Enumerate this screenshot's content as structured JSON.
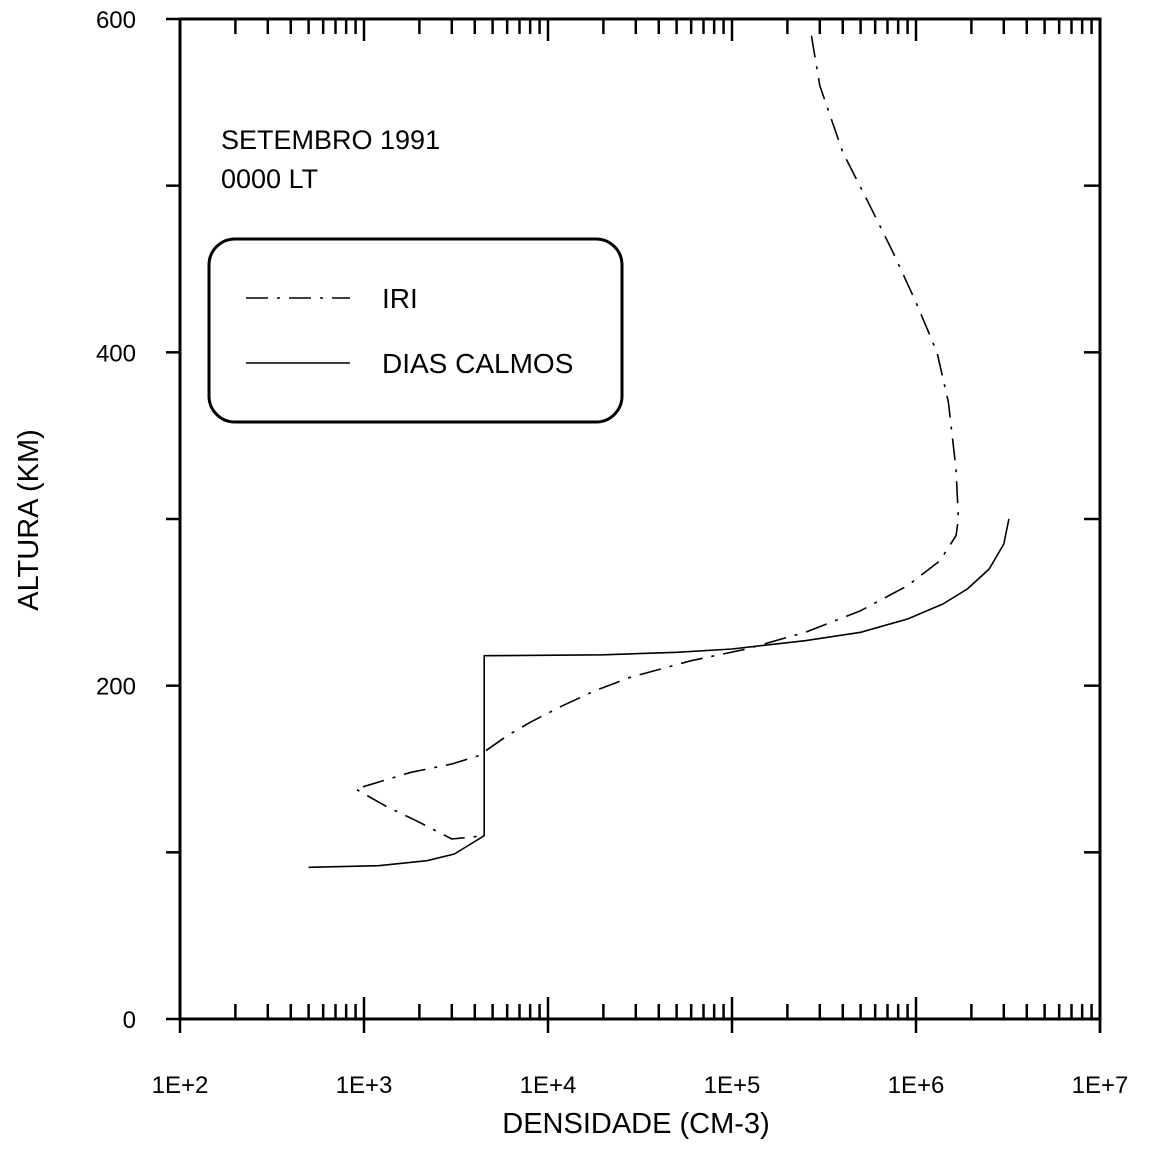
{
  "chart_data": {
    "type": "line",
    "title": "",
    "annotation": [
      "SETEMBRO 1991",
      "0000 LT"
    ],
    "xlabel": "DENSIDADE (CM-3)",
    "ylabel": "ALTURA (KM)",
    "xscale": "log",
    "xlim": [
      100,
      10000000
    ],
    "ylim": [
      0,
      600
    ],
    "x_tick_labels": [
      "1E+2",
      "1E+3",
      "1E+4",
      "1E+5",
      "1E+6",
      "1E+7"
    ],
    "y_tick_labels": [
      "0",
      "200",
      "400",
      "600"
    ],
    "grid": false,
    "legend_position": "upper-left",
    "series": [
      {
        "name": "IRI",
        "style": "dash-dot",
        "color": "#000000",
        "points": [
          [
            270000,
            590
          ],
          [
            300000,
            560
          ],
          [
            400000,
            520
          ],
          [
            550000,
            490
          ],
          [
            750000,
            460
          ],
          [
            1000000,
            430
          ],
          [
            1300000,
            400
          ],
          [
            1500000,
            370
          ],
          [
            1650000,
            330
          ],
          [
            1700000,
            300
          ],
          [
            1650000,
            290
          ],
          [
            1350000,
            275
          ],
          [
            900000,
            260
          ],
          [
            500000,
            245
          ],
          [
            250000,
            232
          ],
          [
            120000,
            222
          ],
          [
            60000,
            215
          ],
          [
            28000,
            205
          ],
          [
            18000,
            197
          ],
          [
            12000,
            188
          ],
          [
            8000,
            178
          ],
          [
            6000,
            170
          ],
          [
            4200,
            158
          ],
          [
            3000,
            153
          ],
          [
            1800,
            148
          ],
          [
            900,
            138
          ],
          [
            1300,
            128
          ],
          [
            2000,
            118
          ],
          [
            3000,
            108
          ],
          [
            4500,
            110
          ]
        ]
      },
      {
        "name": "DIAS CALMOS",
        "style": "solid",
        "color": "#000000",
        "points": [
          [
            3200000,
            300
          ],
          [
            3000000,
            285
          ],
          [
            2500000,
            270
          ],
          [
            1900000,
            258
          ],
          [
            1400000,
            249
          ],
          [
            900000,
            240
          ],
          [
            500000,
            232
          ],
          [
            250000,
            227
          ],
          [
            100000,
            222
          ],
          [
            50000,
            220
          ],
          [
            20000,
            218.5
          ],
          [
            4500,
            218
          ],
          [
            4500,
            110
          ],
          [
            3800,
            105
          ],
          [
            3100,
            99
          ],
          [
            2200,
            95
          ],
          [
            1200,
            92
          ],
          [
            500,
            91
          ]
        ]
      }
    ]
  }
}
